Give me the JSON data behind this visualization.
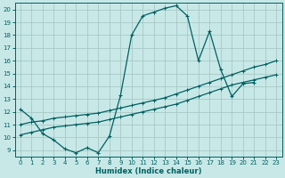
{
  "xlabel": "Humidex (Indice chaleur)",
  "bg_color": "#c8e8e8",
  "grid_color": "#a8c8c8",
  "line_color": "#006060",
  "xlim": [
    -0.5,
    23.5
  ],
  "ylim": [
    8.5,
    20.5
  ],
  "yticks": [
    9,
    10,
    11,
    12,
    13,
    14,
    15,
    16,
    17,
    18,
    19,
    20
  ],
  "xticks": [
    0,
    1,
    2,
    3,
    4,
    5,
    6,
    7,
    8,
    9,
    10,
    11,
    12,
    13,
    14,
    15,
    16,
    17,
    18,
    19,
    20,
    21,
    22,
    23
  ],
  "curve1_x": [
    0,
    1,
    2,
    3,
    4,
    5,
    6,
    7,
    8,
    9,
    10,
    11,
    12,
    13,
    14,
    15,
    16,
    17,
    18,
    19,
    20,
    21
  ],
  "curve1_y": [
    12.2,
    11.5,
    10.3,
    9.8,
    9.1,
    8.8,
    9.2,
    8.8,
    10.1,
    13.3,
    18.0,
    19.5,
    19.8,
    20.1,
    20.3,
    19.5,
    16.0,
    18.3,
    15.3,
    13.2,
    14.2,
    14.3
  ],
  "curve2_x": [
    0,
    1,
    2,
    3,
    4,
    5,
    6,
    7,
    8,
    9,
    10,
    11,
    12,
    13,
    14,
    15,
    16,
    17,
    18,
    19,
    20,
    21,
    22,
    23
  ],
  "curve2_y": [
    10.2,
    10.4,
    10.6,
    10.8,
    10.9,
    11.0,
    11.1,
    11.2,
    11.4,
    11.6,
    11.8,
    12.0,
    12.2,
    12.4,
    12.6,
    12.9,
    13.2,
    13.5,
    13.8,
    14.1,
    14.3,
    14.5,
    14.7,
    14.9
  ],
  "curve3_x": [
    0,
    1,
    2,
    3,
    4,
    5,
    6,
    7,
    8,
    9,
    10,
    11,
    12,
    13,
    14,
    15,
    16,
    17,
    18,
    19,
    20,
    21,
    22,
    23
  ],
  "curve3_y": [
    11.0,
    11.2,
    11.3,
    11.5,
    11.6,
    11.7,
    11.8,
    11.9,
    12.1,
    12.3,
    12.5,
    12.7,
    12.9,
    13.1,
    13.4,
    13.7,
    14.0,
    14.3,
    14.6,
    14.9,
    15.2,
    15.5,
    15.7,
    16.0
  ]
}
